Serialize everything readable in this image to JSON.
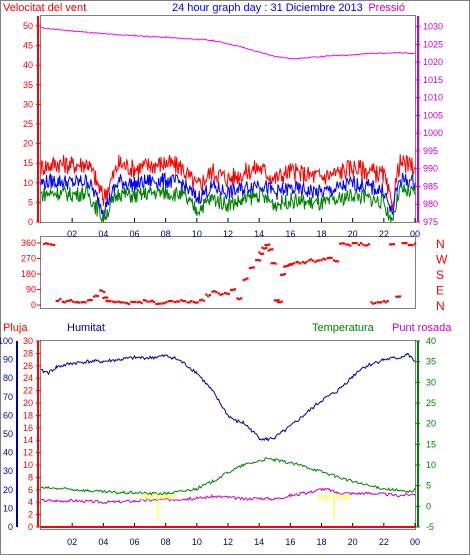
{
  "chart_data": [
    {
      "type": "line",
      "header": {
        "left_label": "Velocitat del vent",
        "title": "24 hour graph day : 31 Diciembre 2013",
        "right_label": "Pressió"
      },
      "x_ticks": [
        "02",
        "04",
        "06",
        "08",
        "10",
        "12",
        "14",
        "16",
        "18",
        "20",
        "22",
        "00"
      ],
      "x_range_hours": [
        0,
        24
      ],
      "left_axis": {
        "ylim": [
          0,
          50
        ],
        "ticks": [
          "0",
          "5",
          "10",
          "15",
          "20",
          "25",
          "30",
          "35",
          "40",
          "45",
          "50"
        ]
      },
      "right_axis": {
        "ylim": [
          975,
          1033
        ],
        "ticks": [
          "975",
          "980",
          "985",
          "990",
          "995",
          "1000",
          "1005",
          "1010",
          "1015",
          "1020",
          "1025",
          "1030"
        ]
      },
      "grid": false,
      "series": [
        {
          "name": "Pressió",
          "axis": "right",
          "color": "#ff00ff",
          "x": [
            0,
            1,
            2,
            3,
            4,
            5,
            6,
            7,
            8,
            9,
            10,
            11,
            12,
            13,
            14,
            15,
            16,
            17,
            18,
            19,
            20,
            21,
            22,
            23,
            24
          ],
          "y": [
            1029.7,
            1029.2,
            1028.8,
            1028.4,
            1028.0,
            1027.7,
            1027.5,
            1027.2,
            1027.0,
            1026.7,
            1026.5,
            1026.1,
            1025.2,
            1024.1,
            1022.8,
            1021.7,
            1021.0,
            1021.2,
            1021.6,
            1021.9,
            1022.1,
            1022.4,
            1022.6,
            1022.6,
            1022.4
          ]
        },
        {
          "name": "",
          "axis": "left",
          "color": "#ff0000",
          "note_series": "gust",
          "x": [
            0,
            1,
            2,
            3,
            3.5,
            4,
            5,
            6,
            7,
            8,
            9,
            10,
            11,
            12,
            13,
            14,
            15,
            16,
            17,
            18,
            19,
            20,
            21,
            22,
            22.5,
            23,
            24
          ],
          "y": [
            14,
            15,
            14.5,
            15,
            11,
            6,
            15,
            13.5,
            14.5,
            15,
            14,
            9,
            13,
            11,
            12.5,
            14,
            11,
            13,
            12,
            11.5,
            12.5,
            14,
            13,
            12,
            4,
            15,
            14
          ]
        },
        {
          "name": "",
          "axis": "left",
          "color": "#0000ff",
          "note_series": "average",
          "x": [
            0,
            1,
            2,
            3,
            3.5,
            4,
            5,
            6,
            7,
            8,
            9,
            10,
            11,
            12,
            13,
            14,
            15,
            16,
            17,
            18,
            19,
            20,
            21,
            22,
            22.5,
            23,
            24
          ],
          "y": [
            10,
            10.5,
            10,
            10.5,
            7,
            3,
            10.5,
            9.5,
            10.5,
            10.5,
            10,
            6,
            9,
            7.5,
            8.5,
            10,
            7.5,
            8.5,
            8,
            7.5,
            8.5,
            10,
            9,
            8,
            2,
            11,
            10
          ]
        },
        {
          "name": "",
          "axis": "left",
          "color": "#008000",
          "note_series": "minimum",
          "x": [
            0,
            1,
            2,
            3,
            3.5,
            4,
            5,
            6,
            7,
            8,
            9,
            10,
            11,
            12,
            13,
            14,
            15,
            16,
            17,
            18,
            19,
            20,
            21,
            22,
            22.5,
            23,
            24
          ],
          "y": [
            7,
            7.5,
            7,
            7.5,
            4,
            1,
            7.5,
            6.5,
            7.5,
            7.5,
            7,
            3,
            6,
            4.5,
            5.5,
            7,
            4.5,
            5.5,
            5,
            4.5,
            5.5,
            7,
            6,
            5,
            0,
            8,
            7
          ]
        }
      ]
    },
    {
      "type": "scatter",
      "x_range_hours": [
        0,
        24
      ],
      "ylim": [
        0,
        360
      ],
      "left_ticks": [
        "0",
        "90",
        "180",
        "270",
        "360"
      ],
      "right_labels": [
        "N",
        "W",
        "S",
        "E",
        "N"
      ],
      "grid": false,
      "series": [
        {
          "name": "",
          "color": "#ff0000",
          "x": [
            0.2,
            0.6,
            1.0,
            1.4,
            1.8,
            2.2,
            2.6,
            3.0,
            3.4,
            3.8,
            4.0,
            4.2,
            4.6,
            5.0,
            5.4,
            5.8,
            6.2,
            6.6,
            7.0,
            7.4,
            7.8,
            8.2,
            8.6,
            9.0,
            9.4,
            9.8,
            10.2,
            10.6,
            11.0,
            11.4,
            11.8,
            12.2,
            12.6,
            13.0,
            13.4,
            13.8,
            14.0,
            14.2,
            14.4,
            14.6,
            14.8,
            15.0,
            15.2,
            15.4,
            15.6,
            15.8,
            16.0,
            16.4,
            16.8,
            17.2,
            17.6,
            18.0,
            18.4,
            18.8,
            19.2,
            19.6,
            20.0,
            20.4,
            20.8,
            21.2,
            21.6,
            22.0,
            22.4,
            22.8,
            23.2,
            23.6,
            24.0
          ],
          "y": [
            355,
            350,
            30,
            20,
            25,
            15,
            20,
            25,
            50,
            80,
            40,
            20,
            15,
            20,
            10,
            20,
            15,
            25,
            20,
            10,
            15,
            20,
            18,
            25,
            20,
            15,
            30,
            55,
            80,
            65,
            70,
            90,
            40,
            150,
            220,
            260,
            300,
            330,
            350,
            320,
            240,
            30,
            20,
            180,
            225,
            230,
            240,
            245,
            250,
            260,
            255,
            265,
            270,
            260,
            355,
            350,
            358,
            355,
            350,
            10,
            15,
            20,
            350,
            45,
            360,
            350,
            355
          ]
        }
      ]
    },
    {
      "type": "line",
      "header": {
        "left_label": "Pluja",
        "left2_label": "Humitat",
        "right2_label": "Temperatura",
        "right_label": "Punt rosada"
      },
      "x_ticks": [
        "02",
        "04",
        "06",
        "08",
        "10",
        "12",
        "14",
        "16",
        "18",
        "20",
        "22",
        "00"
      ],
      "x_range_hours": [
        0,
        24
      ],
      "humidity_axis": {
        "ylim": [
          0,
          100
        ],
        "ticks": [
          "0",
          "10",
          "20",
          "30",
          "40",
          "50",
          "60",
          "70",
          "80",
          "90",
          "100"
        ]
      },
      "rain_axis": {
        "ylim": [
          0,
          30
        ],
        "ticks": [
          "0",
          "2",
          "4",
          "6",
          "8",
          "10",
          "12",
          "14",
          "16",
          "18",
          "20",
          "22",
          "24",
          "26",
          "28",
          "30"
        ]
      },
      "temp_axis": {
        "ylim": [
          -5,
          40
        ],
        "ticks": [
          "-5",
          "0",
          "5",
          "10",
          "15",
          "20",
          "25",
          "30",
          "35",
          "40"
        ]
      },
      "annotations": [
        {
          "text": "Sol Ixent",
          "x_hour": 7.5
        },
        {
          "text": "Sol Post",
          "x_hour": 18.8
        }
      ],
      "grid": false,
      "series": [
        {
          "name": "Humitat",
          "axis": "humidity",
          "color": "#0000a0",
          "x": [
            0,
            0.5,
            1,
            2,
            3,
            4,
            5,
            6,
            7,
            8,
            8.5,
            9,
            10,
            11,
            12,
            12.5,
            13,
            13.5,
            14,
            14.5,
            15,
            15.5,
            16,
            17,
            18,
            19,
            20,
            20.5,
            21,
            22,
            23,
            23.5,
            24
          ],
          "y": [
            84,
            83,
            86,
            88,
            89,
            89,
            90,
            91,
            91,
            92,
            91,
            89,
            83,
            73,
            60,
            57,
            56,
            52,
            48,
            47,
            48,
            51,
            54,
            61,
            68,
            73,
            81,
            85,
            87,
            90,
            91,
            93,
            89
          ]
        },
        {
          "name": "Temperatura",
          "axis": "temp",
          "color": "#008000",
          "x": [
            0,
            1,
            2,
            3,
            4,
            5,
            6,
            7,
            8,
            9,
            10,
            11,
            12,
            13,
            14,
            14.5,
            15,
            16,
            17,
            18,
            19,
            20,
            21,
            22,
            23,
            23.5,
            24
          ],
          "y": [
            4.5,
            4.3,
            4.1,
            3.8,
            3.5,
            3.3,
            3.3,
            3.1,
            3.1,
            3.6,
            4.3,
            6.0,
            8.2,
            10.0,
            11.0,
            11.5,
            11.2,
            10.5,
            9.6,
            8.4,
            7.2,
            6.0,
            5.0,
            4.3,
            3.8,
            3.4,
            4.0
          ]
        },
        {
          "name": "Punt rosada",
          "axis": "temp",
          "color": "#cc00cc",
          "x": [
            0,
            1,
            2,
            3,
            4,
            5,
            6,
            7,
            8,
            9,
            10,
            11,
            12,
            13,
            14,
            15,
            16,
            17,
            18,
            18.5,
            19,
            20,
            21,
            22,
            23,
            24
          ],
          "y": [
            1.5,
            1.3,
            1.4,
            1.2,
            1.0,
            1.1,
            1.3,
            1.5,
            1.6,
            1.8,
            1.9,
            2.4,
            2.2,
            1.8,
            2.0,
            1.8,
            2.6,
            3.2,
            4.2,
            4.0,
            3.3,
            3.1,
            3.2,
            3.0,
            2.6,
            3.0
          ]
        },
        {
          "name": "Pluja",
          "axis": "rain",
          "color": "#ff0000",
          "x": [
            0,
            24
          ],
          "y": [
            0,
            0
          ]
        }
      ]
    }
  ],
  "colors": {
    "wind": "#ff0000",
    "pressure": "#ff00ff",
    "direction": "#ff0000",
    "rain": "#ff0000",
    "humidity": "#0000a0",
    "temperature": "#008000",
    "dewpoint": "#cc00cc",
    "axis_text": "#000000",
    "sun_text": "#ffff00"
  }
}
